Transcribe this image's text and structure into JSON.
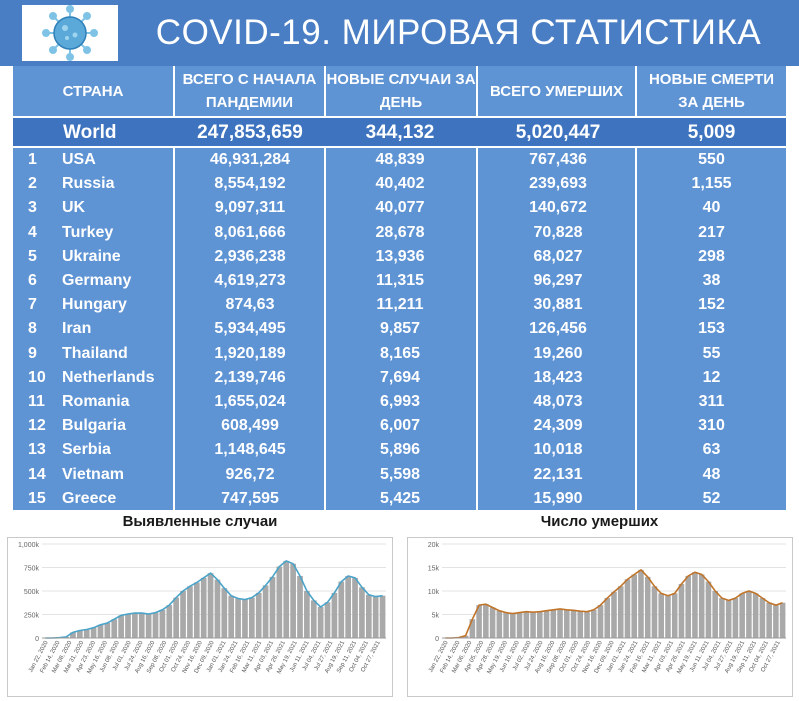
{
  "header": {
    "title": "COVID-19. МИРОВАЯ СТАТИСТИКА",
    "icon": "coronavirus-icon"
  },
  "colors": {
    "header_bg": "#4a7ec4",
    "table_bg": "#5e93d4",
    "world_bg": "#3e74bf",
    "bar": "#a9a9a9",
    "line_cases": "#4aa3c8",
    "line_deaths": "#c0742a"
  },
  "table": {
    "columns": [
      "СТРАНА",
      "ВСЕГО С НАЧАЛА ПАНДЕМИИ",
      "НОВЫЕ СЛУЧАИ ЗА ДЕНЬ",
      "ВСЕГО УМЕРШИХ",
      "НОВЫЕ СМЕРТИ ЗА ДЕНЬ"
    ],
    "world": {
      "name": "World",
      "total": "247,853,659",
      "new_cases": "344,132",
      "deaths": "5,020,447",
      "new_deaths": "5,009"
    },
    "rows": [
      {
        "rank": "1",
        "country": "USA",
        "total": "46,931,284",
        "new_cases": "48,839",
        "deaths": "767,436",
        "new_deaths": "550"
      },
      {
        "rank": "2",
        "country": "Russia",
        "total": "8,554,192",
        "new_cases": "40,402",
        "deaths": "239,693",
        "new_deaths": "1,155"
      },
      {
        "rank": "3",
        "country": "UK",
        "total": "9,097,311",
        "new_cases": "40,077",
        "deaths": "140,672",
        "new_deaths": "40"
      },
      {
        "rank": "4",
        "country": "Turkey",
        "total": "8,061,666",
        "new_cases": "28,678",
        "deaths": "70,828",
        "new_deaths": "217"
      },
      {
        "rank": "5",
        "country": "Ukraine",
        "total": "2,936,238",
        "new_cases": "13,936",
        "deaths": "68,027",
        "new_deaths": "298"
      },
      {
        "rank": "6",
        "country": "Germany",
        "total": "4,619,273",
        "new_cases": "11,315",
        "deaths": "96,297",
        "new_deaths": "38"
      },
      {
        "rank": "7",
        "country": "Hungary",
        "total": "874,63",
        "new_cases": "11,211",
        "deaths": "30,881",
        "new_deaths": "152"
      },
      {
        "rank": "8",
        "country": "Iran",
        "total": "5,934,495",
        "new_cases": "9,857",
        "deaths": "126,456",
        "new_deaths": "153"
      },
      {
        "rank": "9",
        "country": "Thailand",
        "total": "1,920,189",
        "new_cases": "8,165",
        "deaths": "19,260",
        "new_deaths": "55"
      },
      {
        "rank": "10",
        "country": "Netherlands",
        "total": "2,139,746",
        "new_cases": "7,694",
        "deaths": "18,423",
        "new_deaths": "12"
      },
      {
        "rank": "11",
        "country": "Romania",
        "total": "1,655,024",
        "new_cases": "6,993",
        "deaths": "48,073",
        "new_deaths": "311"
      },
      {
        "rank": "12",
        "country": "Bulgaria",
        "total": "608,499",
        "new_cases": "6,007",
        "deaths": "24,309",
        "new_deaths": "310"
      },
      {
        "rank": "13",
        "country": "Serbia",
        "total": "1,148,645",
        "new_cases": "5,896",
        "deaths": "10,018",
        "new_deaths": "63"
      },
      {
        "rank": "14",
        "country": "Vietnam",
        "total": "926,72",
        "new_cases": "5,598",
        "deaths": "22,131",
        "new_deaths": "48"
      },
      {
        "rank": "15",
        "country": "Greece",
        "total": "747,595",
        "new_cases": "5,425",
        "deaths": "15,990",
        "new_deaths": "52"
      }
    ]
  },
  "chart_data": [
    {
      "type": "bar",
      "title": "Выявленные случаи",
      "ylim": [
        0,
        1000000
      ],
      "yticks": [
        "0",
        "250k",
        "500k",
        "750k",
        "1,000k"
      ],
      "ytick_values": [
        0,
        250000,
        500000,
        750000,
        1000000
      ],
      "xticks": [
        "Jan 22, 2020",
        "Feb 14, 2020",
        "Mar 08, 2020",
        "Mar 31, 2020",
        "Apr 23, 2020",
        "May 16, 2020",
        "Jun 08, 2020",
        "Jul 01, 2020",
        "Jul 24, 2020",
        "Aug 16, 2020",
        "Sep 08, 2020",
        "Oct 01, 2020",
        "Oct 24, 2020",
        "Nov 16, 2020",
        "Dec 09, 2020",
        "Jan 01, 2021",
        "Jan 24, 2021",
        "Feb 16, 2021",
        "Mar 11, 2021",
        "Apr 03, 2021",
        "Apr 26, 2021",
        "May 19, 2021",
        "Jun 11, 2021",
        "Jul 04, 2021",
        "Jul 27, 2021",
        "Aug 19, 2021",
        "Sep 11, 2021",
        "Oct 04, 2021",
        "Oct 27, 2021"
      ],
      "series": [
        {
          "values": [
            0,
            0,
            3000,
            12000,
            60000,
            80000,
            90000,
            110000,
            140000,
            160000,
            200000,
            240000,
            255000,
            265000,
            265000,
            255000,
            270000,
            300000,
            350000,
            430000,
            500000,
            550000,
            590000,
            640000,
            690000,
            620000,
            530000,
            450000,
            420000,
            410000,
            430000,
            480000,
            560000,
            650000,
            760000,
            820000,
            790000,
            660000,
            500000,
            400000,
            330000,
            380000,
            480000,
            600000,
            660000,
            640000,
            540000,
            460000,
            440000,
            450000
          ]
        }
      ]
    },
    {
      "type": "bar",
      "title": "Число умерших",
      "ylim": [
        0,
        20000
      ],
      "yticks": [
        "0",
        "5k",
        "10k",
        "15k",
        "20k"
      ],
      "ytick_values": [
        0,
        5000,
        10000,
        15000,
        20000
      ],
      "xticks": [
        "Jan 22, 2020",
        "Feb 14, 2020",
        "Mar 06, 2020",
        "Apr 05, 2020",
        "Apr 28, 2020",
        "May 19, 2020",
        "Jun 10, 2020",
        "Jul 02, 2020",
        "Jul 24, 2020",
        "Aug 16, 2020",
        "Sep 08, 2020",
        "Oct 01, 2020",
        "Oct 24, 2020",
        "Nov 16, 2020",
        "Dec 09, 2020",
        "Jan 01, 2021",
        "Jan 24, 2021",
        "Feb 16, 2021",
        "Mar 11, 2021",
        "Apr 03, 2021",
        "Apr 26, 2021",
        "May 19, 2021",
        "Jun 11, 2021",
        "Jul 04, 2021",
        "Jul 27, 2021",
        "Aug 19, 2021",
        "Sep 11, 2021",
        "Oct 04, 2021",
        "Oct 27, 2021"
      ],
      "series": [
        {
          "values": [
            0,
            0,
            100,
            500,
            4000,
            7000,
            7200,
            6500,
            5800,
            5400,
            5200,
            5400,
            5600,
            5500,
            5600,
            5800,
            6000,
            6200,
            6000,
            5900,
            5700,
            5600,
            6000,
            7000,
            8500,
            9800,
            11000,
            12500,
            13500,
            14500,
            13000,
            11000,
            9500,
            9000,
            9500,
            11500,
            13200,
            14000,
            13500,
            12000,
            10000,
            8500,
            8000,
            8500,
            9500,
            10000,
            9500,
            8500,
            7500,
            7000,
            7500
          ]
        }
      ]
    }
  ]
}
